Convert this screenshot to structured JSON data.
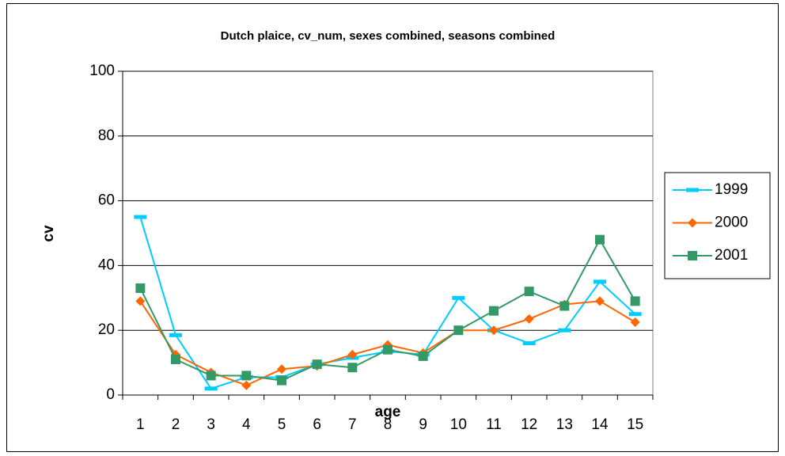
{
  "chart_data": {
    "type": "line",
    "title": "Dutch plaice, cv_num, sexes combined, seasons combined",
    "x_label": "age",
    "y_label": "cv",
    "categories": [
      "1",
      "2",
      "3",
      "4",
      "5",
      "6",
      "7",
      "8",
      "9",
      "10",
      "11",
      "12",
      "13",
      "14",
      "15"
    ],
    "series": [
      {
        "name": "1999",
        "color": "#00ccff",
        "marker": "dash",
        "values": [
          55,
          18.5,
          2,
          5.5,
          5.5,
          9.5,
          11.5,
          13.5,
          12.5,
          30,
          20,
          16,
          20,
          35,
          25
        ]
      },
      {
        "name": "2000",
        "color": "#ff6600",
        "marker": "diamond",
        "values": [
          29,
          12.5,
          7,
          3,
          8,
          9,
          12.5,
          15.5,
          13,
          20,
          20,
          23.5,
          28,
          29,
          22.5
        ]
      },
      {
        "name": "2001",
        "color": "#339966",
        "marker": "square",
        "values": [
          33,
          11,
          6,
          6,
          4.5,
          9.5,
          8.5,
          14,
          12,
          20,
          26,
          32,
          27.5,
          48,
          29
        ]
      }
    ],
    "ylim": [
      0,
      100
    ],
    "yticks": [
      0,
      20,
      40,
      60,
      80,
      100
    ],
    "grid": true,
    "legend": "right"
  }
}
